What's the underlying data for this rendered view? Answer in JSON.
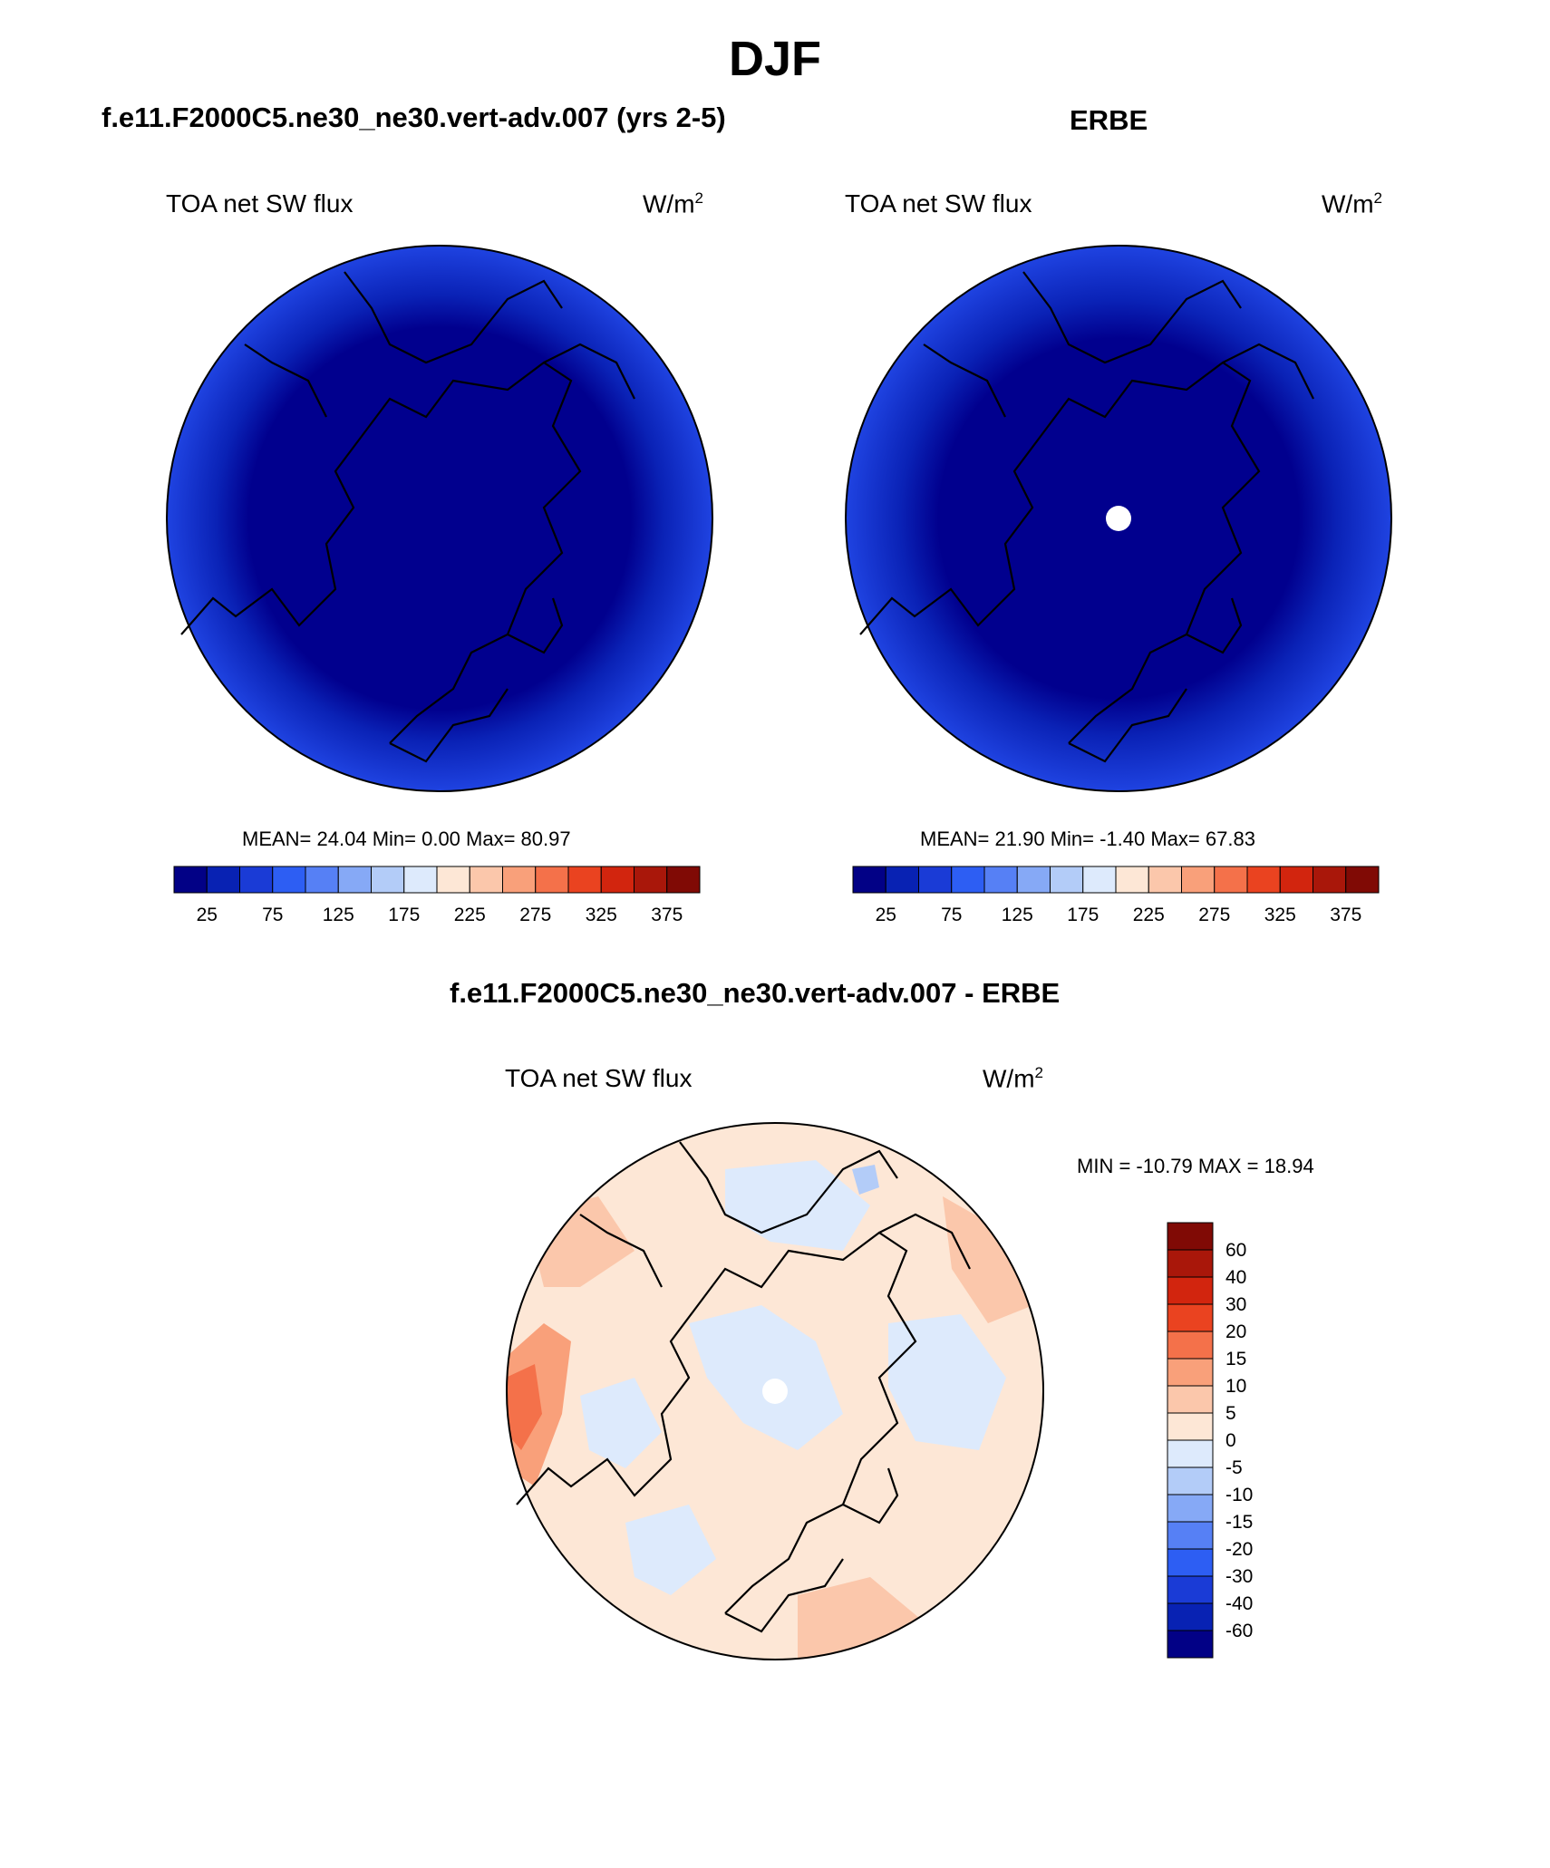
{
  "title": "DJF",
  "panels": [
    {
      "title": "f.e11.F2000C5.ne30_ne30.vert-adv.007 (yrs 2-5)",
      "variable": "TOA net SW flux",
      "units": "W/m",
      "units_exp": "2",
      "stats": "MEAN=  24.04  Min=   0.00  Max=  80.97",
      "projection": "north-polar-stereographic",
      "fill": "#01008e",
      "rim": "#1f43e1"
    },
    {
      "title": "ERBE",
      "variable": "TOA net SW flux",
      "units": "W/m",
      "units_exp": "2",
      "stats": "MEAN=  21.90  Min=  -1.40  Max=  67.83",
      "projection": "north-polar-stereographic",
      "fill": "#01008e",
      "rim": "#1f43e1",
      "missing_pole": true
    }
  ],
  "colorbar_levels": {
    "ticks": [
      "25",
      "75",
      "125",
      "175",
      "225",
      "275",
      "325",
      "375"
    ],
    "colors": [
      "#020186",
      "#0822b3",
      "#1a3bd6",
      "#2d5ef3",
      "#5680f5",
      "#86a9f6",
      "#b3ccf8",
      "#ddeafc",
      "#fde7d6",
      "#fbc7ab",
      "#f9a07a",
      "#f4714a",
      "#ea4320",
      "#d2250e",
      "#a9170a",
      "#800a05"
    ]
  },
  "difference": {
    "title": "f.e11.F2000C5.ne30_ne30.vert-adv.007 - ERBE",
    "variable": "TOA net SW flux",
    "units": "W/m",
    "units_exp": "2",
    "stats": "MIN = -10.79 MAX =  18.94",
    "base_fill": "#fde7d6",
    "missing_pole": true,
    "colorbar": {
      "ticks": [
        "60",
        "40",
        "30",
        "20",
        "15",
        "10",
        "5",
        "0",
        "-5",
        "-10",
        "-15",
        "-20",
        "-30",
        "-40",
        "-60"
      ],
      "colors": [
        "#800a05",
        "#a9170a",
        "#d2250e",
        "#ea4320",
        "#f4714a",
        "#f9a07a",
        "#fbc7ab",
        "#fde7d6",
        "#ddeafc",
        "#b3ccf8",
        "#86a9f6",
        "#5680f5",
        "#2d5ef3",
        "#1a3bd6",
        "#0822b3",
        "#020186"
      ]
    }
  }
}
